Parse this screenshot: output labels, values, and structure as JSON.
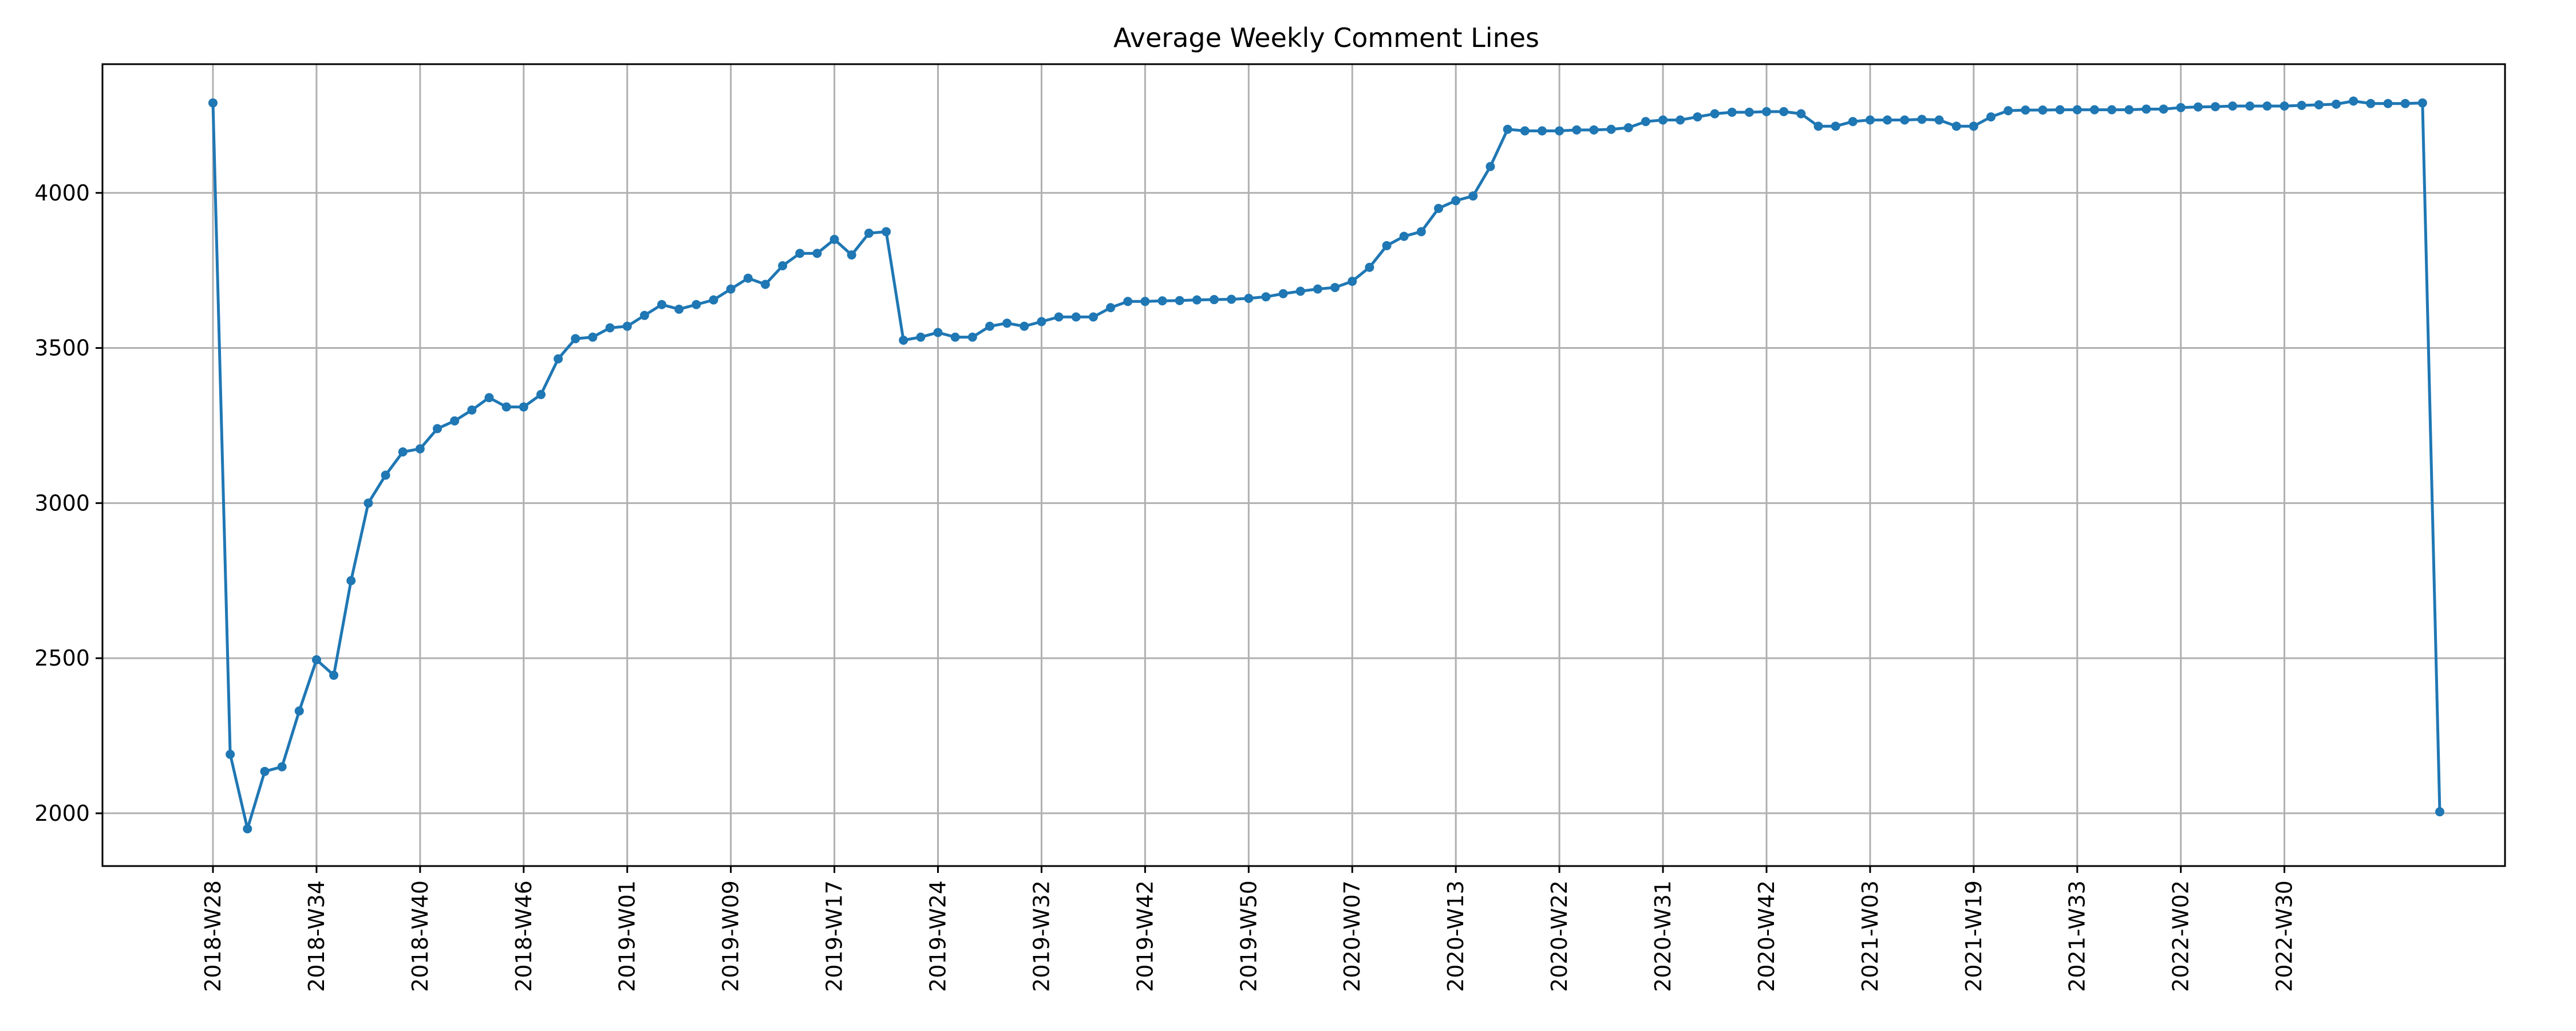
{
  "chart_data": {
    "type": "line",
    "title": "Average Weekly Comment Lines",
    "xlabel": "",
    "ylabel": "",
    "ylim": [
      1830,
      4415
    ],
    "grid": true,
    "series_color": "#1f77b4",
    "y_ticks": [
      2000,
      2500,
      3000,
      3500,
      4000
    ],
    "x_tick_labels": [
      {
        "index": 0,
        "label": "2018-W28"
      },
      {
        "index": 6,
        "label": "2018-W34"
      },
      {
        "index": 12,
        "label": "2018-W40"
      },
      {
        "index": 18,
        "label": "2018-W46"
      },
      {
        "index": 24,
        "label": "2019-W01"
      },
      {
        "index": 30,
        "label": "2019-W09"
      },
      {
        "index": 36,
        "label": "2019-W17"
      },
      {
        "index": 42,
        "label": "2019-W24"
      },
      {
        "index": 48,
        "label": "2019-W32"
      },
      {
        "index": 54,
        "label": "2019-W42"
      },
      {
        "index": 60,
        "label": "2019-W50"
      },
      {
        "index": 66,
        "label": "2020-W07"
      },
      {
        "index": 72,
        "label": "2020-W13"
      },
      {
        "index": 78,
        "label": "2020-W22"
      },
      {
        "index": 84,
        "label": "2020-W31"
      },
      {
        "index": 90,
        "label": "2020-W42"
      },
      {
        "index": 96,
        "label": "2021-W03"
      },
      {
        "index": 102,
        "label": "2021-W19"
      },
      {
        "index": 108,
        "label": "2021-W33"
      },
      {
        "index": 114,
        "label": "2022-W02"
      },
      {
        "index": 120,
        "label": "2022-W30"
      }
    ],
    "series": [
      {
        "values": [
          4290,
          2190,
          1950,
          2135,
          2150,
          2330,
          2495,
          2445,
          2750,
          3000,
          3090,
          3165,
          3175,
          3240,
          3265,
          3300,
          3340,
          3310,
          3310,
          3350,
          3465,
          3530,
          3535,
          3565,
          3570,
          3605,
          3640,
          3625,
          3640,
          3655,
          3690,
          3725,
          3705,
          3765,
          3805,
          3805,
          3850,
          3800,
          3870,
          3875,
          3525,
          3535,
          3550,
          3535,
          3535,
          3570,
          3580,
          3570,
          3585,
          3600,
          3600,
          3600,
          3630,
          3650,
          3650,
          3652,
          3653,
          3655,
          3656,
          3657,
          3660,
          3665,
          3675,
          3683,
          3690,
          3695,
          3715,
          3760,
          3830,
          3860,
          3875,
          3950,
          3975,
          3990,
          4085,
          4205,
          4200,
          4200,
          4200,
          4203,
          4203,
          4205,
          4210,
          4230,
          4235,
          4235,
          4245,
          4255,
          4260,
          4260,
          4262,
          4262,
          4255,
          4215,
          4215,
          4230,
          4235,
          4235,
          4235,
          4237,
          4235,
          4215,
          4215,
          4245,
          4265,
          4267,
          4267,
          4268,
          4268,
          4268,
          4268,
          4268,
          4270,
          4270,
          4275,
          4277,
          4278,
          4280,
          4280,
          4280,
          4280,
          4282,
          4284,
          4286,
          4296,
          4288,
          4288,
          4288,
          4290,
          2005
        ]
      }
    ]
  }
}
